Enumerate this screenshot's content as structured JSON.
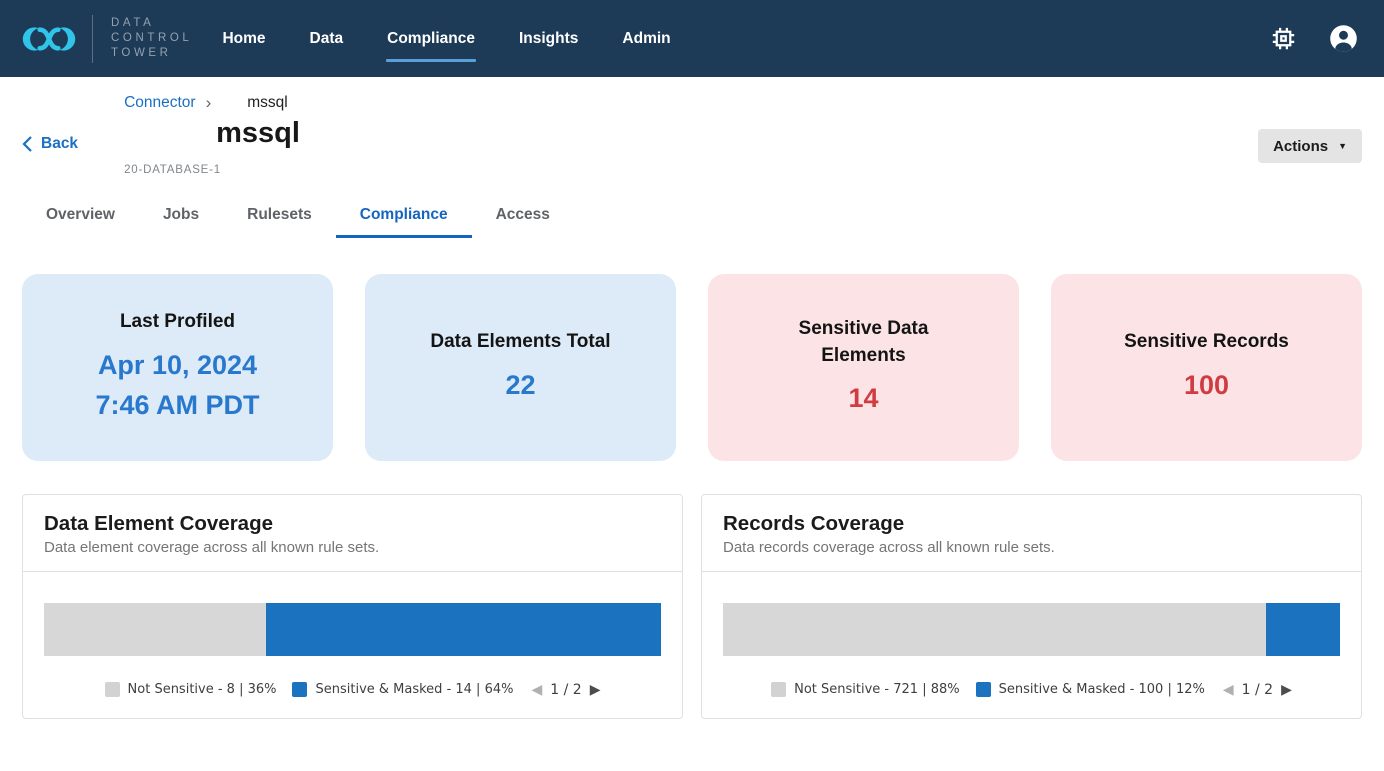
{
  "header": {
    "wordmark_line1": "DATA",
    "wordmark_line2": "CONTROL",
    "wordmark_line3": "TOWER",
    "nav": [
      {
        "label": "Home",
        "active": false
      },
      {
        "label": "Data",
        "active": false
      },
      {
        "label": "Compliance",
        "active": true
      },
      {
        "label": "Insights",
        "active": false
      },
      {
        "label": "Admin",
        "active": false
      }
    ]
  },
  "breadcrumb": {
    "parent": "Connector",
    "separator": "›",
    "current": "mssql"
  },
  "back_label": "Back",
  "page": {
    "title": "mssql",
    "subtitle": "20-DATABASE-1"
  },
  "actions_button": {
    "label": "Actions",
    "caret": "▼"
  },
  "tabs": [
    {
      "label": "Overview",
      "active": false
    },
    {
      "label": "Jobs",
      "active": false
    },
    {
      "label": "Rulesets",
      "active": false
    },
    {
      "label": "Compliance",
      "active": true
    },
    {
      "label": "Access",
      "active": false
    }
  ],
  "stats": [
    {
      "title": "Last Profiled",
      "value_line1": "Apr 10, 2024",
      "value_line2": "7:46 AM PDT",
      "theme": "blue"
    },
    {
      "title": "Data Elements Total",
      "value": "22",
      "theme": "blue"
    },
    {
      "title": "Sensitive Data Elements",
      "value": "14",
      "theme": "red"
    },
    {
      "title": "Sensitive Records",
      "value": "100",
      "theme": "red"
    }
  ],
  "panels": [
    {
      "title": "Data Element Coverage",
      "subtitle": "Data element coverage across all known rule sets.",
      "bar": [
        {
          "label": "Not Sensitive",
          "percent": 36,
          "color": "#d7d7d7"
        },
        {
          "label": "Sensitive & Masked",
          "percent": 64,
          "color": "#1b72bf"
        }
      ],
      "legend": [
        {
          "text": "Not Sensitive - 8 | 36%",
          "color": "#d2d2d2"
        },
        {
          "text": "Sensitive & Masked - 14 | 64%",
          "color": "#1b72bf"
        }
      ],
      "pagination": {
        "prev": "◀",
        "current": "1 / 2",
        "next": "▶"
      }
    },
    {
      "title": "Records Coverage",
      "subtitle": "Data records coverage across all known rule sets.",
      "bar": [
        {
          "label": "Not Sensitive",
          "percent": 88,
          "color": "#d7d7d7"
        },
        {
          "label": "Sensitive & Masked",
          "percent": 12,
          "color": "#1b72bf"
        }
      ],
      "legend": [
        {
          "text": "Not Sensitive - 721 | 88%",
          "color": "#d2d2d2"
        },
        {
          "text": "Sensitive & Masked - 100 | 12%",
          "color": "#1b72bf"
        }
      ],
      "pagination": {
        "prev": "◀",
        "current": "1 / 2",
        "next": "▶"
      }
    }
  ],
  "chart_data": [
    {
      "type": "bar",
      "stacked": true,
      "title": "Data Element Coverage",
      "series": [
        {
          "name": "Not Sensitive",
          "count": 8,
          "percent": 36
        },
        {
          "name": "Sensitive & Masked",
          "count": 14,
          "percent": 64
        }
      ],
      "legend_position": "bottom",
      "legend_page": "1 / 2"
    },
    {
      "type": "bar",
      "stacked": true,
      "title": "Records Coverage",
      "series": [
        {
          "name": "Not Sensitive",
          "count": 721,
          "percent": 88
        },
        {
          "name": "Sensitive & Masked",
          "count": 100,
          "percent": 12
        }
      ],
      "legend_position": "bottom",
      "legend_page": "1 / 2"
    }
  ],
  "colors": {
    "header_bg": "#1d3a57",
    "logo_cyan": "#31c4e9",
    "nav_underline": "#5b9fd8",
    "link_blue": "#1a6fc4",
    "tab_active_blue": "#1565c0",
    "card_blue_bg": "#ddeaf7",
    "card_pink_bg": "#fce4e6",
    "value_blue": "#2878cd",
    "value_red": "#d03c42",
    "bar_gray": "#d7d7d7",
    "bar_blue": "#1b72bf"
  }
}
